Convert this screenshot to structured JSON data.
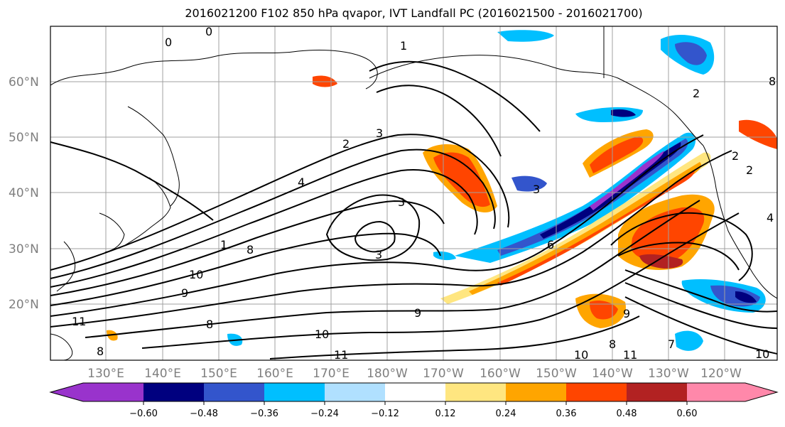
{
  "title": "2016021200 F102 850 hPa qvapor, IVT Landfall PC (2016021500 - 2016021700)",
  "latitude_labels": [
    "60°N",
    "50°N",
    "40°N",
    "30°N",
    "20°N"
  ],
  "longitude_labels": [
    "130°E",
    "140°E",
    "150°E",
    "160°E",
    "170°E",
    "180°W",
    "170°W",
    "160°W",
    "150°W",
    "140°W",
    "130°W",
    "120°W"
  ],
  "colorbar": {
    "ticks": [
      "−0.60",
      "−0.48",
      "−0.36",
      "−0.24",
      "−0.12",
      "0.12",
      "0.24",
      "0.36",
      "0.48",
      "0.60"
    ],
    "colors": [
      "#9933cc",
      "#00007f",
      "#3355cc",
      "#00bfff",
      "#b0e0ff",
      "#ffffff",
      "#ffe680",
      "#ffa500",
      "#ff4500",
      "#b22222",
      "#ff88aa"
    ]
  },
  "contour_labels": [
    "0",
    "0",
    "1",
    "2",
    "3",
    "2",
    "4",
    "3",
    "3",
    "3",
    "1",
    "8",
    "10",
    "9",
    "8",
    "11",
    "10",
    "9",
    "10",
    "11",
    "8",
    "9",
    "11",
    "10",
    "8",
    "7",
    "6",
    "2",
    "2",
    "4",
    "8"
  ]
}
